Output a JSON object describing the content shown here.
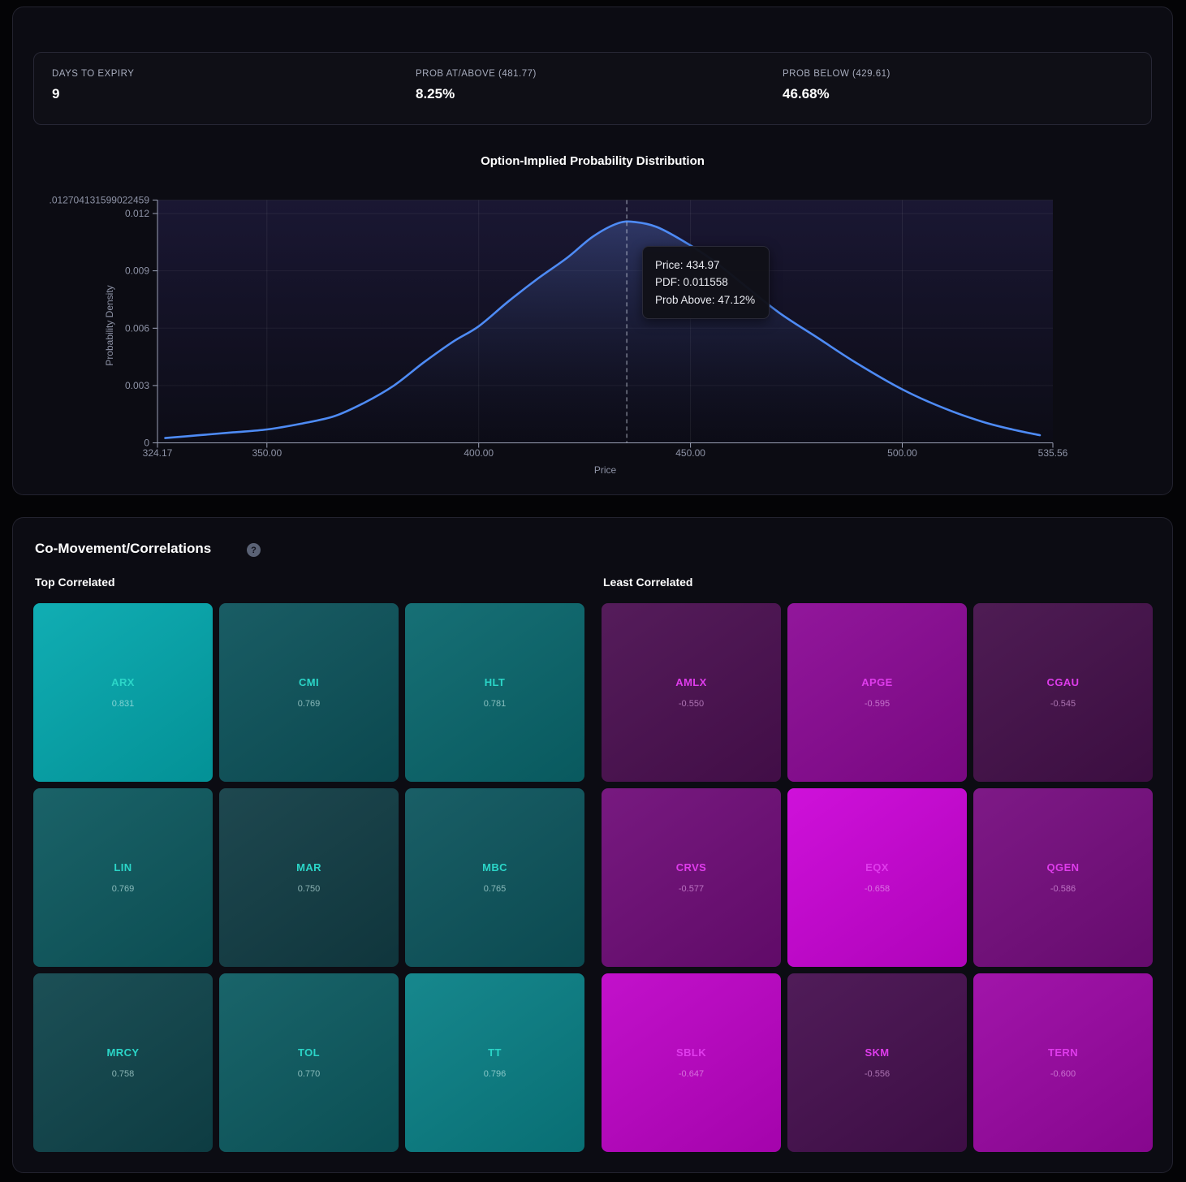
{
  "stats": [
    {
      "label": "DAYS TO EXPIRY",
      "value": "9"
    },
    {
      "label": "PROB AT/ABOVE (481.77)",
      "value": "8.25%"
    },
    {
      "label": "PROB BELOW (429.61)",
      "value": "46.68%"
    }
  ],
  "chart_data": {
    "type": "area",
    "title": "Option-Implied Probability Distribution",
    "xlabel": "Price",
    "ylabel": "Probability Density",
    "xlim": [
      324.17,
      535.56
    ],
    "ylim": [
      0,
      0.012704131599022459
    ],
    "x_ticks": [
      "324.17",
      "350.00",
      "400.00",
      "450.00",
      "500.00",
      "535.56"
    ],
    "x_tick_values": [
      324.17,
      350,
      400,
      450,
      500,
      535.56
    ],
    "y_ticks": [
      "0",
      "0.003",
      "0.006",
      "0.009",
      "0.012"
    ],
    "y_tick_values": [
      0,
      0.003,
      0.006,
      0.009,
      0.012
    ],
    "y_top_label": ".012704131599022459",
    "grid": true,
    "line_color": "#4e8bf5",
    "points": [
      [
        326,
        0.00025
      ],
      [
        334,
        0.0004
      ],
      [
        342,
        0.00055
      ],
      [
        350,
        0.0007
      ],
      [
        358,
        0.001
      ],
      [
        366,
        0.0014
      ],
      [
        373,
        0.0021
      ],
      [
        380,
        0.003
      ],
      [
        387,
        0.0042
      ],
      [
        394,
        0.0053
      ],
      [
        400,
        0.0061
      ],
      [
        407,
        0.0074
      ],
      [
        414,
        0.0086
      ],
      [
        421,
        0.0097
      ],
      [
        427,
        0.0108
      ],
      [
        433,
        0.0115
      ],
      [
        437,
        0.01155
      ],
      [
        442,
        0.0113
      ],
      [
        448,
        0.0106
      ],
      [
        455,
        0.0096
      ],
      [
        463,
        0.0082
      ],
      [
        471,
        0.0068
      ],
      [
        480,
        0.0055
      ],
      [
        489,
        0.0042
      ],
      [
        500,
        0.0028
      ],
      [
        510,
        0.0018
      ],
      [
        519,
        0.0011
      ],
      [
        526,
        0.0007
      ],
      [
        532.5,
        0.0004
      ]
    ],
    "marker": {
      "price": 434.97,
      "pdf": 0.011558,
      "prob_above": "47.12%"
    },
    "tooltip": {
      "lines": [
        "Price: 434.97",
        "PDF: 0.011558",
        "Prob Above: 47.12%"
      ]
    }
  },
  "correlations": {
    "title": "Co-Movement/Correlations",
    "help_icon": "?",
    "top": {
      "label": "Top Correlated",
      "tiles": [
        {
          "ticker": "ARX",
          "value": "0.831",
          "bg": "#04a9af"
        },
        {
          "ticker": "CMI",
          "value": "0.769",
          "bg": "#0d545c"
        },
        {
          "ticker": "HLT",
          "value": "0.781",
          "bg": "#0a686e"
        },
        {
          "ticker": "LIN",
          "value": "0.769",
          "bg": "#0e5a60"
        },
        {
          "ticker": "MAR",
          "value": "0.750",
          "bg": "#123e46"
        },
        {
          "ticker": "MBC",
          "value": "0.765",
          "bg": "#0d565e"
        },
        {
          "ticker": "MRCY",
          "value": "0.758",
          "bg": "#10464d"
        },
        {
          "ticker": "TOL",
          "value": "0.770",
          "bg": "#0d5c62"
        },
        {
          "ticker": "TT",
          "value": "0.796",
          "bg": "#0a8187"
        }
      ]
    },
    "least": {
      "label": "Least Correlated",
      "tiles": [
        {
          "ticker": "AMLX",
          "value": "-0.550",
          "bg": "#4c1052"
        },
        {
          "ticker": "APGE",
          "value": "-0.595",
          "bg": "#8c0a96"
        },
        {
          "ticker": "CGAU",
          "value": "-0.545",
          "bg": "#45104b"
        },
        {
          "ticker": "CRVS",
          "value": "-0.577",
          "bg": "#700d79"
        },
        {
          "ticker": "EQX",
          "value": "-0.658",
          "bg": "#cc04d8"
        },
        {
          "ticker": "QGEN",
          "value": "-0.586",
          "bg": "#770d80"
        },
        {
          "ticker": "SBLK",
          "value": "-0.647",
          "bg": "#bf04c8"
        },
        {
          "ticker": "SKM",
          "value": "-0.556",
          "bg": "#471050"
        },
        {
          "ticker": "TERN",
          "value": "-0.600",
          "bg": "#9c08a5"
        }
      ]
    }
  }
}
